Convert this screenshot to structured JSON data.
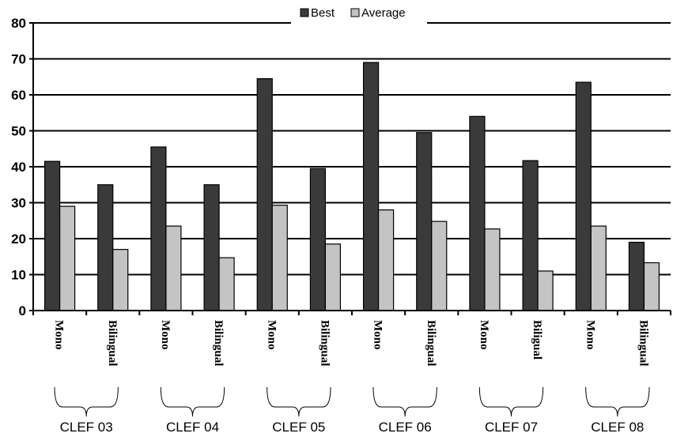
{
  "colors": {
    "best": "#3a3a3a",
    "average": "#c4c4c4",
    "axis": "#000000"
  },
  "chart_data": {
    "type": "bar",
    "title": "",
    "xlabel": "",
    "ylabel": "",
    "ylim": [
      0,
      80
    ],
    "yticks": [
      0,
      10,
      20,
      30,
      40,
      50,
      60,
      70,
      80
    ],
    "grid": true,
    "legend_position": "top-center",
    "categories": [
      "Mono",
      "Bilingual",
      "Mono",
      "Bilingual",
      "Mono",
      "Bilingual",
      "Mono",
      "Bilingual",
      "Mono",
      "Biligual",
      "Mono",
      "Bilingual"
    ],
    "groups": [
      {
        "label": "CLEF 03",
        "categories": [
          0,
          1
        ]
      },
      {
        "label": "CLEF 04",
        "categories": [
          2,
          3
        ]
      },
      {
        "label": "CLEF 05",
        "categories": [
          4,
          5
        ]
      },
      {
        "label": "CLEF 06",
        "categories": [
          6,
          7
        ]
      },
      {
        "label": "CLEF 07",
        "categories": [
          8,
          9
        ]
      },
      {
        "label": "CLEF 08",
        "categories": [
          10,
          11
        ]
      }
    ],
    "series": [
      {
        "name": "Best",
        "values": [
          41.5,
          35,
          45.5,
          35,
          64.5,
          39.5,
          69,
          49.5,
          54,
          41.7,
          63.5,
          19
        ]
      },
      {
        "name": "Average",
        "values": [
          29,
          17,
          23.5,
          14.7,
          29.3,
          18.5,
          28,
          24.8,
          22.7,
          11,
          23.5,
          13.3
        ]
      }
    ]
  }
}
